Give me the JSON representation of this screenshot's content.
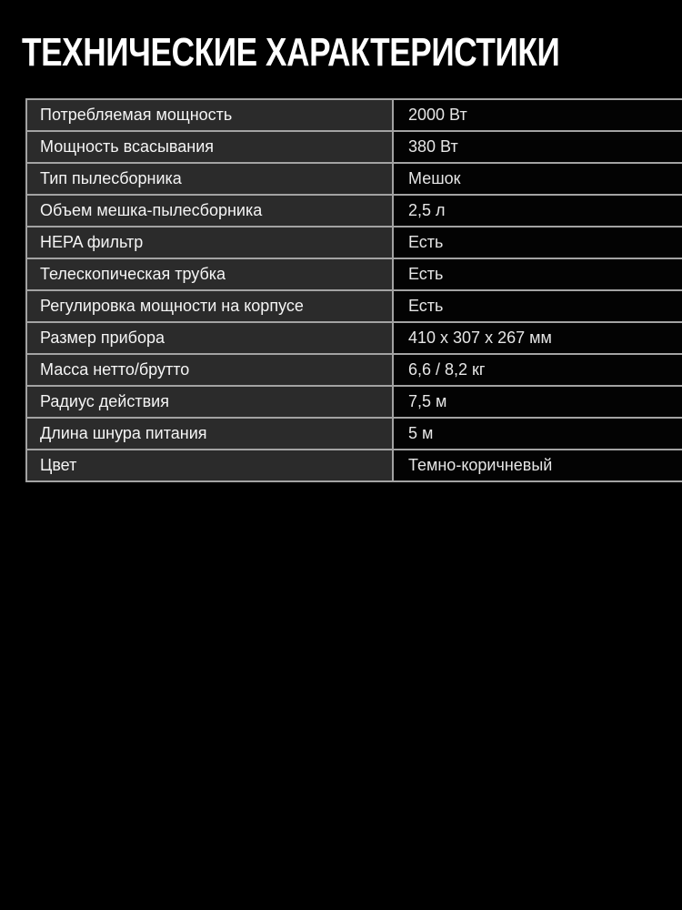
{
  "title": "ТЕХНИЧЕСКИЕ ХАРАКТЕРИСТИКИ",
  "colors": {
    "page_background": "#000000",
    "title_text": "#ffffff",
    "label_cell_background": "#2b2b2b",
    "value_cell_background": "#030303",
    "cell_border": "#a3a3a3",
    "label_text": "#f5f5f5",
    "value_text": "#e6e6e6"
  },
  "table": {
    "rows": [
      {
        "label": "Потребляемая мощность",
        "value": "2000 Вт"
      },
      {
        "label": "Мощность всасывания",
        "value": "380 Вт"
      },
      {
        "label": "Тип пылесборника",
        "value": "Мешок"
      },
      {
        "label": "Объем мешка-пылесборника",
        "value": "2,5 л"
      },
      {
        "label": "HEPA фильтр",
        "value": "Есть"
      },
      {
        "label": "Телескопическая трубка",
        "value": "Есть"
      },
      {
        "label": "Регулировка мощности на корпусе",
        "value": "Есть"
      },
      {
        "label": "Размер прибора",
        "value": "410 x 307 x 267 мм"
      },
      {
        "label": "Масса нетто/брутто",
        "value": "6,6 / 8,2 кг"
      },
      {
        "label": "Радиус действия",
        "value": "7,5 м"
      },
      {
        "label": "Длина шнура питания",
        "value": "5 м"
      },
      {
        "label": "Цвет",
        "value": "Темно-коричневый"
      }
    ]
  }
}
